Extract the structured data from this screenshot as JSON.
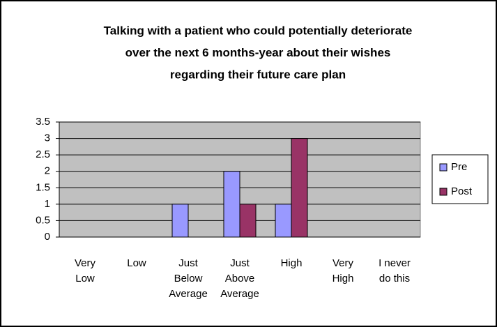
{
  "chart_data": {
    "type": "bar",
    "title": [
      "Talking with a patient who could potentially deteriorate",
      "over the next 6 months-year about their wishes",
      "regarding their future care plan"
    ],
    "categories": [
      "Very Low",
      "Low",
      "Just Below Average",
      "Just Above Average",
      "High",
      "Very High",
      "I never do this"
    ],
    "series": [
      {
        "name": "Pre",
        "color": "#9999ff",
        "values": [
          0,
          0,
          1,
          2,
          1,
          0,
          0
        ]
      },
      {
        "name": "Post",
        "color": "#993366",
        "values": [
          0,
          0,
          0,
          1,
          3,
          0,
          0
        ]
      }
    ],
    "ylim": [
      0,
      3.5
    ],
    "yticks": [
      0,
      0.5,
      1,
      1.5,
      2,
      2.5,
      3,
      3.5
    ],
    "grid": true,
    "legend": "right"
  }
}
